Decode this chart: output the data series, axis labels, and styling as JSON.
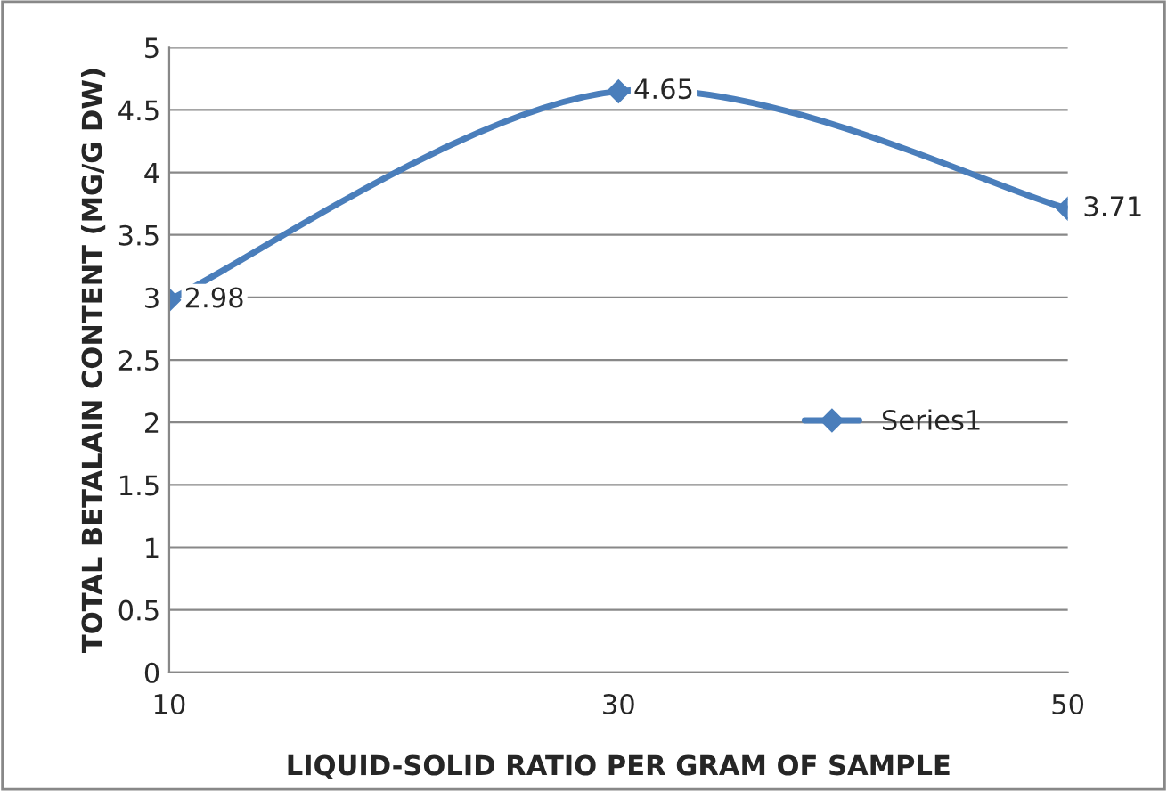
{
  "chart_data": {
    "type": "line",
    "xlabel": "LIQUID-SOLID RATIO PER GRAM OF SAMPLE",
    "ylabel": "TOTAL BETALAIN CONTENT (MG/G DW)",
    "categories": [
      "10",
      "30",
      "50"
    ],
    "series": [
      {
        "name": "Series1",
        "color": "#4a7ebb",
        "values": [
          2.98,
          4.65,
          3.71
        ]
      }
    ],
    "ylim": [
      0,
      5
    ],
    "yticks": [
      0,
      0.5,
      1,
      1.5,
      2,
      2.5,
      3,
      3.5,
      4,
      4.5,
      5
    ],
    "grid": "y",
    "legend": "right",
    "marker": "diamond",
    "line_style": "solid",
    "data_labels": true
  }
}
